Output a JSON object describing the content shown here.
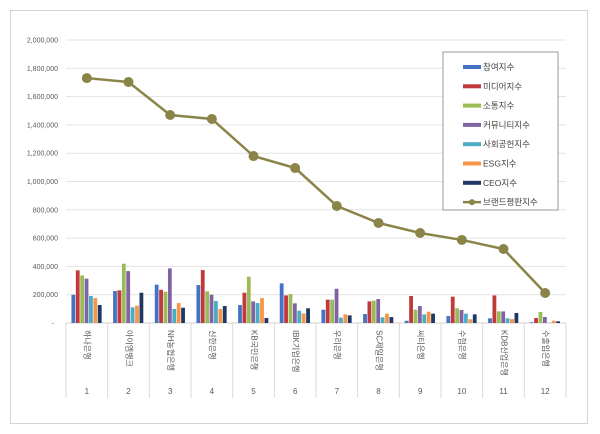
{
  "chart_data": {
    "type": "bar",
    "title": "",
    "xlabel": "",
    "ylabel": "",
    "ylim": [
      0,
      2000000
    ],
    "yticks": [
      "-",
      "200,000",
      "400,000",
      "600,000",
      "800,000",
      "1,000,000",
      "1,200,000",
      "1,400,000",
      "1,600,000",
      "1,800,000",
      "2,000,000"
    ],
    "grid": true,
    "legend_position": "top-right",
    "categories": [
      "하나은행",
      "아이엠뱅크",
      "NH농협은행",
      "신한은행",
      "KB국민은행",
      "IBK기업은행",
      "우리은행",
      "SC제일은행",
      "씨티은행",
      "수협은행",
      "KDB산업은행",
      "수출입은행"
    ],
    "ranks": [
      "1",
      "2",
      "3",
      "4",
      "5",
      "6",
      "7",
      "8",
      "9",
      "10",
      "11",
      "12"
    ],
    "series": [
      {
        "name": "참여지수",
        "color": "#4472c4",
        "type": "bar",
        "values": [
          200000,
          226000,
          271000,
          268000,
          127000,
          280000,
          94000,
          64000,
          16000,
          49000,
          33000,
          5000
        ]
      },
      {
        "name": "미디어지수",
        "color": "#c0393b",
        "type": "bar",
        "values": [
          372000,
          231000,
          235000,
          374000,
          214000,
          195000,
          165000,
          153000,
          191000,
          186000,
          195000,
          35000
        ]
      },
      {
        "name": "소통지수",
        "color": "#9bbb59",
        "type": "bar",
        "values": [
          336000,
          419000,
          221000,
          224000,
          327000,
          205000,
          165000,
          158000,
          94000,
          104000,
          82000,
          78000
        ]
      },
      {
        "name": "커뮤니티지수",
        "color": "#8064a2",
        "type": "bar",
        "values": [
          313000,
          367000,
          386000,
          200000,
          153000,
          139000,
          242000,
          169000,
          120000,
          92000,
          82000,
          42000
        ]
      },
      {
        "name": "사회공헌지수",
        "color": "#4bacc6",
        "type": "bar",
        "values": [
          191000,
          111000,
          99000,
          155000,
          141000,
          87000,
          38000,
          40000,
          61000,
          66000,
          33000,
          2000
        ]
      },
      {
        "name": "ESG지수",
        "color": "#f79646",
        "type": "bar",
        "values": [
          176000,
          122000,
          141000,
          99000,
          176000,
          68000,
          61000,
          66000,
          80000,
          26000,
          28000,
          16000
        ]
      },
      {
        "name": "CEO지수",
        "color": "#1f3864",
        "type": "bar",
        "values": [
          127000,
          214000,
          108000,
          120000,
          35000,
          104000,
          54000,
          42000,
          66000,
          61000,
          71000,
          12000
        ]
      },
      {
        "name": "브랜드평판지수",
        "color": "#8b8448",
        "type": "line",
        "values": [
          1731000,
          1703000,
          1470000,
          1442000,
          1180000,
          1095000,
          827000,
          707000,
          636000,
          587000,
          523000,
          212000
        ]
      }
    ]
  }
}
